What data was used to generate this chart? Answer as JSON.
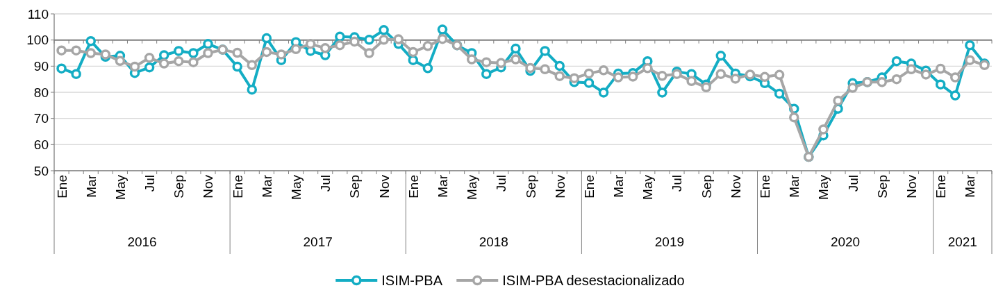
{
  "chart_data": {
    "type": "line",
    "categories": [
      "Ene",
      null,
      "Mar",
      null,
      "May",
      null,
      "Jul",
      null,
      "Sep",
      null,
      "Nov",
      null,
      "Ene",
      null,
      "Mar",
      null,
      "May",
      null,
      "Jul",
      null,
      "Sep",
      null,
      "Nov",
      null,
      "Ene",
      null,
      "Mar",
      null,
      "May",
      null,
      "Jul",
      null,
      "Sep",
      null,
      "Nov",
      null,
      "Ene",
      null,
      "Mar",
      null,
      "May",
      null,
      "Jul",
      null,
      "Sep",
      null,
      "Nov",
      null,
      "Ene",
      null,
      "Mar",
      null,
      "May",
      null,
      "Jul",
      null,
      "Sep",
      null,
      "Nov",
      null,
      "Ene",
      null,
      "Mar",
      null
    ],
    "annotations": [
      "2016",
      "2017",
      "2018",
      "2019",
      "2020",
      "2021"
    ],
    "series": [
      {
        "name": "ISIM-PBA",
        "color": "#14adc4",
        "values": [
          89.1,
          87,
          99.6,
          93.6,
          94,
          87.4,
          89.5,
          94.2,
          95.8,
          95,
          98.5,
          96.3,
          89.8,
          81,
          100.7,
          92.3,
          99.2,
          95.8,
          94.2,
          101.3,
          101.1,
          100.1,
          103.8,
          98.5,
          92.3,
          89.2,
          104,
          98,
          95,
          87,
          89.5,
          96.7,
          88.2,
          95.8,
          90.1,
          83.9,
          83.6,
          79.9,
          87.2,
          87.4,
          91.9,
          79.9,
          87.9,
          87,
          83,
          94,
          87.2,
          86.1,
          83.5,
          79.5,
          73.7,
          55.3,
          63.5,
          73.7,
          83.5,
          83.9,
          85.7,
          91.9,
          91,
          88.3,
          83,
          78.8,
          98,
          91
        ]
      },
      {
        "name": "ISIM-PBA desestacionalizado",
        "color": "#a6a6a6",
        "values": [
          96,
          96,
          95,
          94.5,
          92,
          89.8,
          93.2,
          91,
          91.9,
          91.5,
          95,
          96.3,
          95.1,
          90.4,
          95.4,
          94.5,
          96.5,
          98.5,
          96.9,
          98,
          99.4,
          95,
          100.1,
          100.3,
          95.4,
          97.7,
          100.4,
          98,
          92.6,
          91.5,
          91.2,
          92.6,
          89.3,
          88.8,
          86.2,
          85.4,
          87.2,
          88.4,
          85.7,
          86,
          89.2,
          86.3,
          87,
          84.3,
          81.9,
          87,
          85.2,
          86.8,
          85.9,
          86.7,
          70.4,
          55.3,
          65.8,
          76.8,
          81.7,
          83.9,
          83.9,
          85,
          88.8,
          86.8,
          89,
          85.7,
          92.3,
          90.4
        ]
      }
    ],
    "ylim": [
      50,
      110
    ],
    "yticks": [
      50,
      60,
      70,
      80,
      90,
      100,
      110
    ],
    "grid": "y",
    "legend": "bottom",
    "marker": "circle",
    "line_style": "solid",
    "ref_lines": [
      {
        "axis": "y",
        "value": 100,
        "color": "#7f7f7f"
      }
    ]
  }
}
